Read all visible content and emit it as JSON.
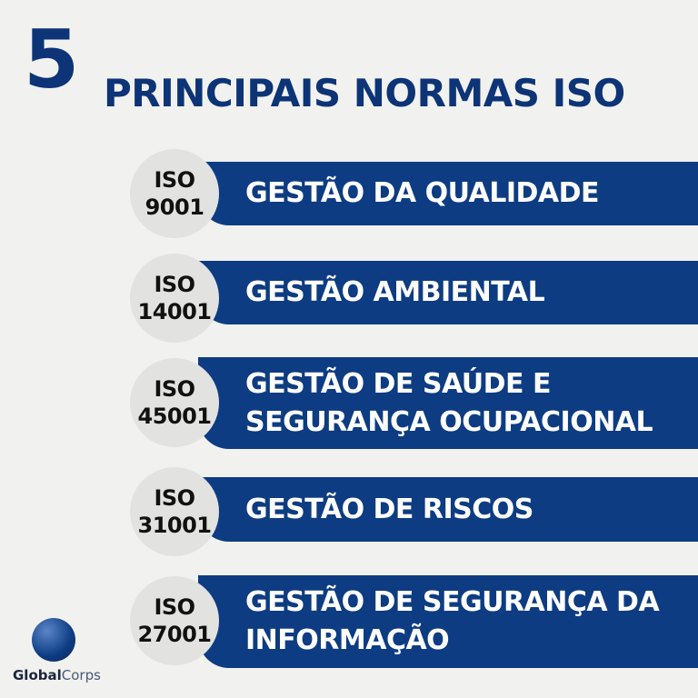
{
  "title": {
    "number": "5",
    "text": "PRINCIPAIS NORMAS ISO"
  },
  "colors": {
    "primary": "#0d3c82",
    "title": "#0c3476",
    "badge": "#e2e2e0",
    "background": "#f1f1ef"
  },
  "items": [
    {
      "code1": "ISO",
      "code2": "9001",
      "label": "GESTÃO DA QUALIDADE"
    },
    {
      "code1": "ISO",
      "code2": "14001",
      "label": "GESTÃO AMBIENTAL"
    },
    {
      "code1": "ISO",
      "code2": "45001",
      "label": "GESTÃO DE SAÚDE E SEGURANÇA OCUPACIONAL"
    },
    {
      "code1": "ISO",
      "code2": "31001",
      "label": "GESTÃO DE RISCOS"
    },
    {
      "code1": "ISO",
      "code2": "27001",
      "label": "GESTÃO DE SEGURANÇA DA INFORMAÇÃO"
    }
  ],
  "logo": {
    "bold": "Global",
    "light": "Corps",
    "icon": "globe-icon"
  }
}
